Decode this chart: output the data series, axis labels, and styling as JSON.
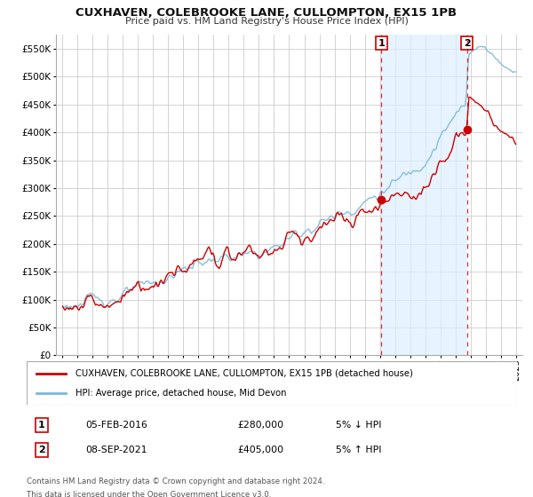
{
  "title": "CUXHAVEN, COLEBROOKE LANE, CULLOMPTON, EX15 1PB",
  "subtitle": "Price paid vs. HM Land Registry's House Price Index (HPI)",
  "legend_line1": "CUXHAVEN, COLEBROOKE LANE, CULLOMPTON, EX15 1PB (detached house)",
  "legend_line2": "HPI: Average price, detached house, Mid Devon",
  "note1": "Contains HM Land Registry data © Crown copyright and database right 2024.",
  "note2": "This data is licensed under the Open Government Licence v3.0.",
  "table_row1": [
    "1",
    "05-FEB-2016",
    "£280,000",
    "5% ↓ HPI"
  ],
  "table_row2": [
    "2",
    "08-SEP-2021",
    "£405,000",
    "5% ↑ HPI"
  ],
  "hpi_color": "#7ab8d9",
  "price_color": "#cc0000",
  "marker_color": "#cc0000",
  "bg_color": "#ffffff",
  "grid_color": "#cccccc",
  "shade_color": "#ddeeff",
  "ylim": [
    0,
    575000
  ],
  "yticks": [
    0,
    50000,
    100000,
    150000,
    200000,
    250000,
    300000,
    350000,
    400000,
    450000,
    500000,
    550000
  ],
  "point1_year": 2016.09,
  "point1_val": 280000,
  "point2_year": 2021.75,
  "point2_val": 405000,
  "xlim_left": 1994.6,
  "xlim_right": 2025.4
}
